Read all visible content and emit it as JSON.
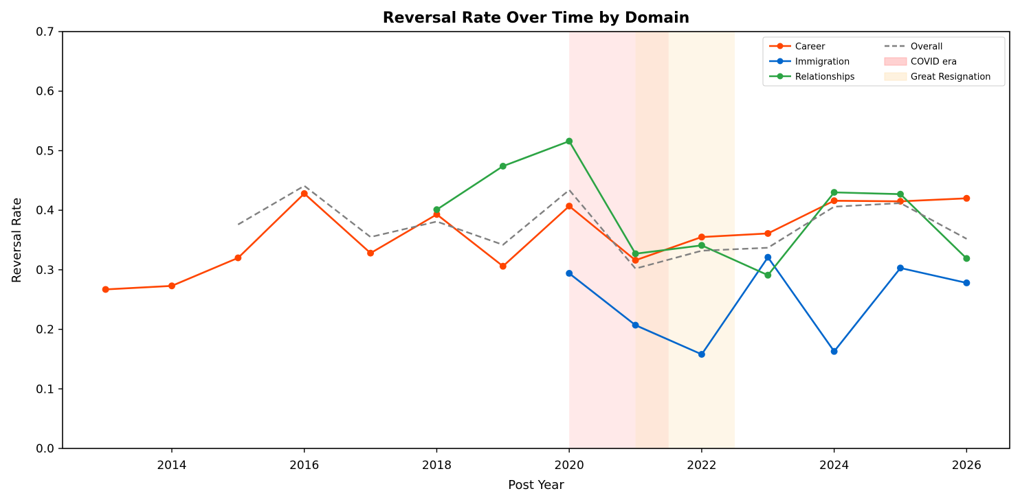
{
  "chart_data": {
    "type": "line",
    "title": "Reversal Rate Over Time by Domain",
    "xlabel": "Post Year",
    "ylabel": "Reversal Rate",
    "xlim": [
      2012.35,
      2026.65
    ],
    "ylim": [
      0,
      0.7
    ],
    "xticks": [
      2014,
      2016,
      2018,
      2020,
      2022,
      2024,
      2026
    ],
    "xtick_labels": [
      "2014",
      "2016",
      "2018",
      "2020",
      "2022",
      "2024",
      "2026"
    ],
    "yticks": [
      0,
      0.1,
      0.2,
      0.3,
      0.4,
      0.5,
      0.6,
      0.7
    ],
    "ytick_labels": [
      "0.0",
      "0.1",
      "0.2",
      "0.3",
      "0.4",
      "0.5",
      "0.6",
      "0.7"
    ],
    "grid": false,
    "legend_position": "top-right",
    "legend_columns": 2,
    "shaded_regions": [
      {
        "name": "COVID era",
        "x_start": 2020,
        "x_end": 2021.5,
        "color": "#ff9999",
        "opacity": 0.22
      },
      {
        "name": "Great Resignation",
        "x_start": 2021,
        "x_end": 2022.5,
        "color": "#fde3b8",
        "opacity": 0.32
      }
    ],
    "series": [
      {
        "name": "Career",
        "color": "#ff4500",
        "style": "solid",
        "marker": true,
        "x": [
          2013,
          2014,
          2015,
          2016,
          2017,
          2018,
          2019,
          2020,
          2021,
          2022,
          2023,
          2024,
          2025,
          2026
        ],
        "y": [
          0.267,
          0.273,
          0.32,
          0.428,
          0.328,
          0.393,
          0.306,
          0.407,
          0.316,
          0.355,
          0.361,
          0.416,
          0.415,
          0.42
        ]
      },
      {
        "name": "Immigration",
        "color": "#0066cc",
        "style": "solid",
        "marker": true,
        "x": [
          2020,
          2021,
          2022,
          2023,
          2024,
          2025,
          2026
        ],
        "y": [
          0.294,
          0.207,
          0.158,
          0.321,
          0.163,
          0.303,
          0.278
        ]
      },
      {
        "name": "Relationships",
        "color": "#2ca444",
        "style": "solid",
        "marker": true,
        "x": [
          2018,
          2019,
          2020,
          2021,
          2022,
          2023,
          2024,
          2025,
          2026
        ],
        "y": [
          0.401,
          0.474,
          0.516,
          0.327,
          0.341,
          0.291,
          0.43,
          0.427,
          0.319
        ]
      },
      {
        "name": "Overall",
        "color": "#808080",
        "style": "dashed",
        "marker": false,
        "x": [
          2015,
          2016,
          2017,
          2018,
          2019,
          2020,
          2021,
          2022,
          2023,
          2024,
          2025,
          2026
        ],
        "y": [
          0.376,
          0.441,
          0.355,
          0.381,
          0.342,
          0.434,
          0.302,
          0.332,
          0.337,
          0.406,
          0.412,
          0.352
        ]
      }
    ],
    "legend": [
      {
        "label": "Career",
        "kind": "line-marker",
        "color": "#ff4500"
      },
      {
        "label": "Immigration",
        "kind": "line-marker",
        "color": "#0066cc"
      },
      {
        "label": "Relationships",
        "kind": "line-marker",
        "color": "#2ca444"
      },
      {
        "label": "Overall",
        "kind": "dashed",
        "color": "#808080"
      },
      {
        "label": "COVID era",
        "kind": "patch",
        "color": "#ff9999"
      },
      {
        "label": "Great Resignation",
        "kind": "patch",
        "color": "#fde3b8"
      }
    ]
  }
}
